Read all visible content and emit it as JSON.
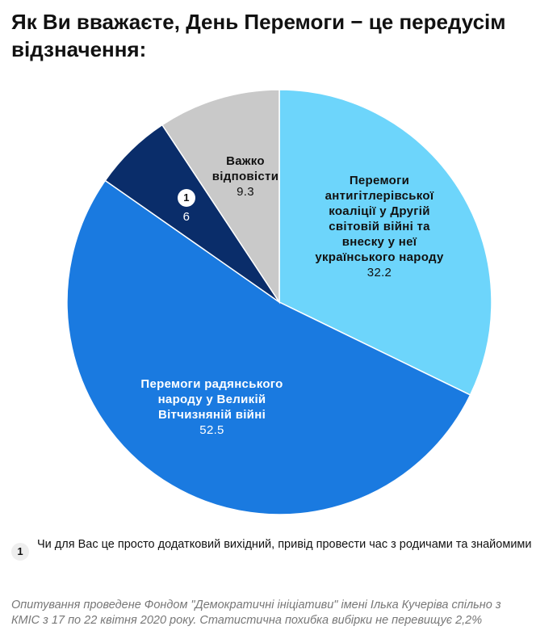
{
  "chart_data": {
    "type": "pie",
    "title": "Як Ви вважаєте, День Перемоги − це передусім відзначення:",
    "categories": [
      "Перемоги антигітлерівської коаліції у Другій світовій війні та внеску у неї українського народу",
      "Перемоги радянського народу у Великій Вітчизняній війні",
      "1",
      "Важко відповісти"
    ],
    "values": [
      32.2,
      52.5,
      6,
      9.3
    ],
    "colors": [
      "#6dd5fb",
      "#1a7ae0",
      "#0a2d6a",
      "#c9c9c9"
    ],
    "footnote": {
      "marker": "1",
      "text": "Чи для Вас це просто додатковий вихідний, привід провести час з родичами та знайомими"
    },
    "source": "Опитування проведене Фондом \"Демократичні ініціативи\" імені Ілька Кучеріва спільно з КМІС з 17 по 22 квітня 2020 року. Статистична похибка вибірки не перевищує 2,2%"
  }
}
